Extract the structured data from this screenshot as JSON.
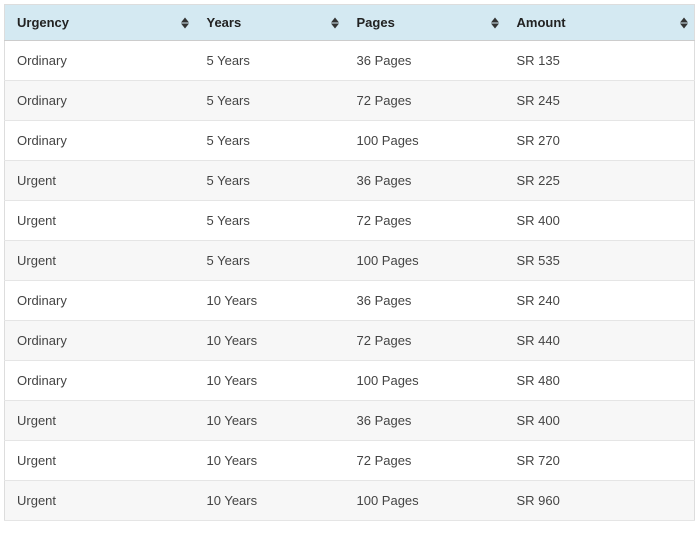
{
  "table": {
    "header_background": "#d4e9f2",
    "row_alt_background": "#f7f7f7",
    "border_color": "#e5e5e5",
    "text_color": "#444",
    "header_text_color": "#222",
    "sort_icon_color": "#333333",
    "columns": [
      {
        "label": "Urgency"
      },
      {
        "label": "Years"
      },
      {
        "label": "Pages"
      },
      {
        "label": "Amount"
      }
    ],
    "rows": [
      [
        "Ordinary",
        "5 Years",
        "36 Pages",
        "SR 135"
      ],
      [
        "Ordinary",
        "5 Years",
        "72 Pages",
        "SR 245"
      ],
      [
        "Ordinary",
        "5 Years",
        "100 Pages",
        "SR 270"
      ],
      [
        "Urgent",
        "5 Years",
        "36 Pages",
        "SR 225"
      ],
      [
        "Urgent",
        "5 Years",
        "72 Pages",
        "SR 400"
      ],
      [
        "Urgent",
        "5 Years",
        "100 Pages",
        "SR 535"
      ],
      [
        "Ordinary",
        "10 Years",
        "36 Pages",
        "SR 240"
      ],
      [
        "Ordinary",
        "10 Years",
        "72 Pages",
        "SR 440"
      ],
      [
        "Ordinary",
        "10 Years",
        "100 Pages",
        "SR 480"
      ],
      [
        "Urgent",
        "10 Years",
        "36 Pages",
        "SR 400"
      ],
      [
        "Urgent",
        "10 Years",
        "72 Pages",
        "SR 720"
      ],
      [
        "Urgent",
        "10 Years",
        "100 Pages",
        "SR 960"
      ]
    ]
  }
}
